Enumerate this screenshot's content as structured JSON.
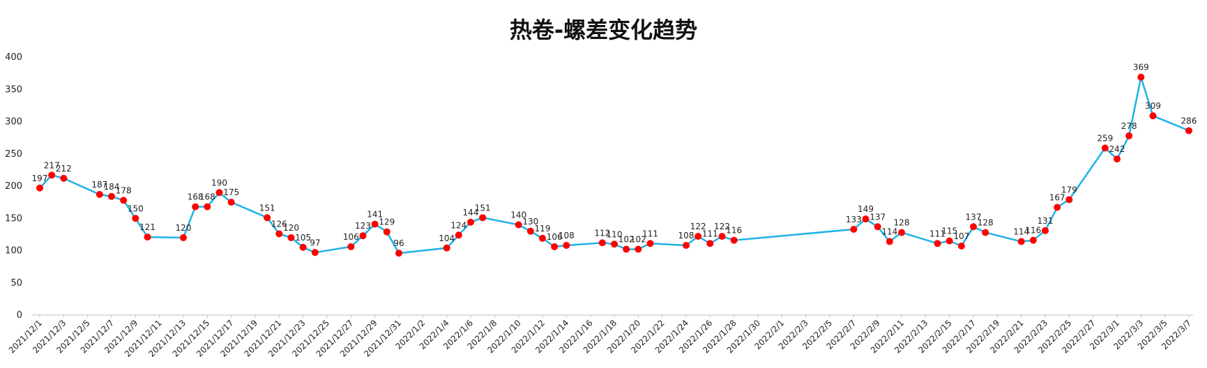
{
  "chart_data": {
    "type": "line",
    "title": "热卷-螺差变化趋势",
    "xlabel": "",
    "ylabel": "",
    "ylim": [
      0,
      400
    ],
    "yticks": [
      0,
      50,
      100,
      150,
      200,
      250,
      300,
      350,
      400
    ],
    "xrange": [
      "2021/12/1",
      "2022/3/7"
    ],
    "x_tick_step_days": 2,
    "grid": false,
    "legend": "none",
    "line_color": "#1EB2E6",
    "marker_color": "#FF0000",
    "points": [
      {
        "x": "2021/12/1",
        "y": 197
      },
      {
        "x": "2021/12/2",
        "y": 217
      },
      {
        "x": "2021/12/3",
        "y": 212
      },
      {
        "x": "2021/12/6",
        "y": 187
      },
      {
        "x": "2021/12/7",
        "y": 184
      },
      {
        "x": "2021/12/8",
        "y": 178
      },
      {
        "x": "2021/12/9",
        "y": 150
      },
      {
        "x": "2021/12/10",
        "y": 121
      },
      {
        "x": "2021/12/13",
        "y": 120
      },
      {
        "x": "2021/12/14",
        "y": 168
      },
      {
        "x": "2021/12/15",
        "y": 168
      },
      {
        "x": "2021/12/16",
        "y": 190
      },
      {
        "x": "2021/12/17",
        "y": 175
      },
      {
        "x": "2021/12/20",
        "y": 151
      },
      {
        "x": "2021/12/21",
        "y": 126
      },
      {
        "x": "2021/12/22",
        "y": 120
      },
      {
        "x": "2021/12/23",
        "y": 105
      },
      {
        "x": "2021/12/24",
        "y": 97
      },
      {
        "x": "2021/12/27",
        "y": 106
      },
      {
        "x": "2021/12/28",
        "y": 123
      },
      {
        "x": "2021/12/29",
        "y": 141
      },
      {
        "x": "2021/12/30",
        "y": 129
      },
      {
        "x": "2021/12/31",
        "y": 96
      },
      {
        "x": "2022/1/4",
        "y": 104
      },
      {
        "x": "2022/1/5",
        "y": 124
      },
      {
        "x": "2022/1/6",
        "y": 144
      },
      {
        "x": "2022/1/7",
        "y": 151
      },
      {
        "x": "2022/1/10",
        "y": 140
      },
      {
        "x": "2022/1/11",
        "y": 130
      },
      {
        "x": "2022/1/12",
        "y": 119
      },
      {
        "x": "2022/1/13",
        "y": 106
      },
      {
        "x": "2022/1/14",
        "y": 108
      },
      {
        "x": "2022/1/17",
        "y": 112
      },
      {
        "x": "2022/1/18",
        "y": 110
      },
      {
        "x": "2022/1/19",
        "y": 102
      },
      {
        "x": "2022/1/20",
        "y": 102
      },
      {
        "x": "2022/1/21",
        "y": 111
      },
      {
        "x": "2022/1/24",
        "y": 108
      },
      {
        "x": "2022/1/25",
        "y": 122
      },
      {
        "x": "2022/1/26",
        "y": 111
      },
      {
        "x": "2022/1/27",
        "y": 122
      },
      {
        "x": "2022/1/28",
        "y": 116
      },
      {
        "x": "2022/2/7",
        "y": 133
      },
      {
        "x": "2022/2/8",
        "y": 149
      },
      {
        "x": "2022/2/9",
        "y": 137
      },
      {
        "x": "2022/2/10",
        "y": 114
      },
      {
        "x": "2022/2/11",
        "y": 128
      },
      {
        "x": "2022/2/14",
        "y": 111
      },
      {
        "x": "2022/2/15",
        "y": 115
      },
      {
        "x": "2022/2/16",
        "y": 107
      },
      {
        "x": "2022/2/17",
        "y": 137
      },
      {
        "x": "2022/2/18",
        "y": 128
      },
      {
        "x": "2022/2/21",
        "y": 114
      },
      {
        "x": "2022/2/22",
        "y": 116
      },
      {
        "x": "2022/2/23",
        "y": 131
      },
      {
        "x": "2022/2/24",
        "y": 167
      },
      {
        "x": "2022/2/25",
        "y": 179
      },
      {
        "x": "2022/2/28",
        "y": 259
      },
      {
        "x": "2022/3/1",
        "y": 242
      },
      {
        "x": "2022/3/2",
        "y": 278
      },
      {
        "x": "2022/3/3",
        "y": 369
      },
      {
        "x": "2022/3/4",
        "y": 309
      },
      {
        "x": "2022/3/7",
        "y": 286
      }
    ]
  }
}
